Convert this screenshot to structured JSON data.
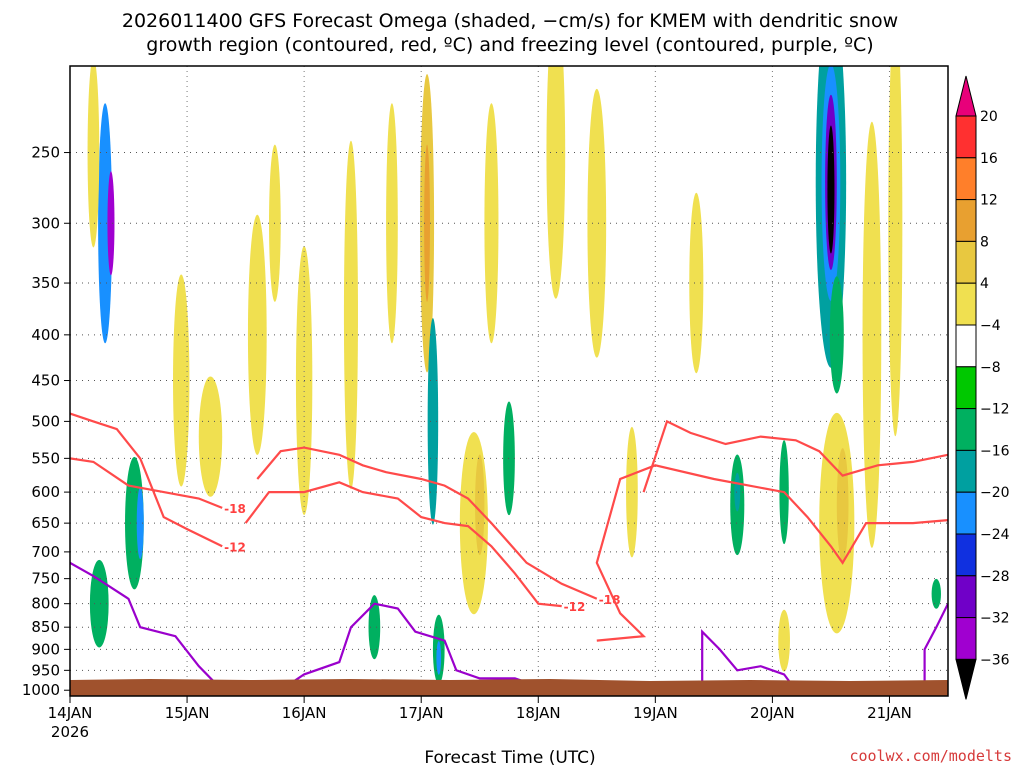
{
  "chart_data": {
    "type": "heatmap",
    "title_line1": "2026011400 GFS Forecast Omega (shaded, −cm/s) for KMEM with dendritic snow",
    "title_line2": "growth region (contoured, red, ºC) and freezing level (contoured, purple, ºC)",
    "xlabel": "Forecast Time (UTC)",
    "credit": "coolwx.com/modelts",
    "x_range_days": [
      14,
      21.5
    ],
    "x_ticks": [
      {
        "day": 14,
        "label": "14JAN",
        "sub": "2026"
      },
      {
        "day": 15,
        "label": "15JAN"
      },
      {
        "day": 16,
        "label": "16JAN"
      },
      {
        "day": 17,
        "label": "17JAN"
      },
      {
        "day": 18,
        "label": "18JAN"
      },
      {
        "day": 19,
        "label": "19JAN"
      },
      {
        "day": 20,
        "label": "20JAN"
      },
      {
        "day": 21,
        "label": "21JAN"
      }
    ],
    "y_ticks": [
      250,
      300,
      350,
      400,
      450,
      500,
      550,
      600,
      650,
      700,
      750,
      800,
      850,
      900,
      950,
      1000
    ],
    "y_range_hpa": [
      200,
      1015
    ],
    "colorbar": {
      "levels": [
        20,
        16,
        12,
        8,
        4,
        -4,
        -8,
        -12,
        -16,
        -20,
        -24,
        -28,
        -32,
        -36
      ],
      "colors": [
        "#e8007a",
        "#ff3030",
        "#ff7f2a",
        "#e8a030",
        "#e8c840",
        "#f0e050",
        "#ffffff",
        "#00c800",
        "#00b060",
        "#00a0a0",
        "#1890ff",
        "#1030e0",
        "#7000c8",
        "#a000d0",
        "#a0a0a0",
        "#000000"
      ]
    },
    "shading": [
      {
        "x": 14.3,
        "y": 300,
        "rx": 0.06,
        "ry": 90,
        "v": -16
      },
      {
        "x": 14.35,
        "y": 300,
        "rx": 0.03,
        "ry": 40,
        "v": -28
      },
      {
        "x": 14.55,
        "y": 650,
        "rx": 0.08,
        "ry": 110,
        "v": -10
      },
      {
        "x": 14.6,
        "y": 650,
        "rx": 0.03,
        "ry": 60,
        "v": -16
      },
      {
        "x": 14.25,
        "y": 800,
        "rx": 0.08,
        "ry": 90,
        "v": -8
      },
      {
        "x": 14.2,
        "y": 250,
        "rx": 0.05,
        "ry": 60,
        "v": 6
      },
      {
        "x": 14.95,
        "y": 450,
        "rx": 0.07,
        "ry": 120,
        "v": 6
      },
      {
        "x": 15.2,
        "y": 520,
        "rx": 0.1,
        "ry": 80,
        "v": 6
      },
      {
        "x": 15.6,
        "y": 400,
        "rx": 0.08,
        "ry": 120,
        "v": 5
      },
      {
        "x": 15.75,
        "y": 300,
        "rx": 0.05,
        "ry": 60,
        "v": 6
      },
      {
        "x": 16.0,
        "y": 450,
        "rx": 0.07,
        "ry": 150,
        "v": 5
      },
      {
        "x": 16.4,
        "y": 380,
        "rx": 0.06,
        "ry": 160,
        "v": 6
      },
      {
        "x": 16.6,
        "y": 850,
        "rx": 0.05,
        "ry": 70,
        "v": -8
      },
      {
        "x": 16.75,
        "y": 300,
        "rx": 0.05,
        "ry": 90,
        "v": 6
      },
      {
        "x": 17.05,
        "y": 300,
        "rx": 0.06,
        "ry": 110,
        "v": 9
      },
      {
        "x": 17.05,
        "y": 300,
        "rx": 0.025,
        "ry": 60,
        "v": 14
      },
      {
        "x": 17.1,
        "y": 500,
        "rx": 0.045,
        "ry": 130,
        "v": -12
      },
      {
        "x": 17.15,
        "y": 900,
        "rx": 0.05,
        "ry": 80,
        "v": -10
      },
      {
        "x": 17.15,
        "y": 920,
        "rx": 0.02,
        "ry": 40,
        "v": -16
      },
      {
        "x": 17.45,
        "y": 650,
        "rx": 0.12,
        "ry": 150,
        "v": 7
      },
      {
        "x": 17.5,
        "y": 620,
        "rx": 0.04,
        "ry": 80,
        "v": 11
      },
      {
        "x": 17.75,
        "y": 550,
        "rx": 0.05,
        "ry": 80,
        "v": -8
      },
      {
        "x": 17.6,
        "y": 300,
        "rx": 0.06,
        "ry": 90,
        "v": 6
      },
      {
        "x": 18.15,
        "y": 250,
        "rx": 0.08,
        "ry": 90,
        "v": 6
      },
      {
        "x": 18.5,
        "y": 300,
        "rx": 0.08,
        "ry": 100,
        "v": 5
      },
      {
        "x": 18.8,
        "y": 600,
        "rx": 0.05,
        "ry": 100,
        "v": 6
      },
      {
        "x": 19.35,
        "y": 350,
        "rx": 0.06,
        "ry": 80,
        "v": 5
      },
      {
        "x": 19.7,
        "y": 620,
        "rx": 0.06,
        "ry": 80,
        "v": -8
      },
      {
        "x": 19.7,
        "y": 600,
        "rx": 0.025,
        "ry": 30,
        "v": -14
      },
      {
        "x": 20.1,
        "y": 600,
        "rx": 0.04,
        "ry": 80,
        "v": -8
      },
      {
        "x": 20.1,
        "y": 880,
        "rx": 0.05,
        "ry": 70,
        "v": 6
      },
      {
        "x": 20.5,
        "y": 270,
        "rx": 0.13,
        "ry": 120,
        "v": -12
      },
      {
        "x": 20.5,
        "y": 270,
        "rx": 0.08,
        "ry": 80,
        "v": -18
      },
      {
        "x": 20.5,
        "y": 270,
        "rx": 0.05,
        "ry": 60,
        "v": -26
      },
      {
        "x": 20.5,
        "y": 275,
        "rx": 0.03,
        "ry": 45,
        "v": -38
      },
      {
        "x": 20.55,
        "y": 400,
        "rx": 0.06,
        "ry": 60,
        "v": -8
      },
      {
        "x": 20.55,
        "y": 650,
        "rx": 0.15,
        "ry": 180,
        "v": 7
      },
      {
        "x": 20.6,
        "y": 620,
        "rx": 0.05,
        "ry": 90,
        "v": 11
      },
      {
        "x": 20.85,
        "y": 400,
        "rx": 0.08,
        "ry": 200,
        "v": 7
      },
      {
        "x": 21.05,
        "y": 300,
        "rx": 0.06,
        "ry": 150,
        "v": 6
      },
      {
        "x": 21.4,
        "y": 780,
        "rx": 0.04,
        "ry": 30,
        "v": -8
      }
    ],
    "contours_dgz": [
      {
        "label": "-18",
        "points": [
          [
            14.0,
            550
          ],
          [
            14.2,
            555
          ],
          [
            14.5,
            590
          ],
          [
            14.8,
            600
          ],
          [
            15.1,
            610
          ],
          [
            15.3,
            625
          ]
        ]
      },
      {
        "label": "-12",
        "points": [
          [
            14.0,
            490
          ],
          [
            14.2,
            500
          ],
          [
            14.4,
            510
          ],
          [
            14.6,
            550
          ],
          [
            14.8,
            640
          ],
          [
            15.0,
            660
          ],
          [
            15.3,
            690
          ]
        ]
      },
      {
        "label": "-12",
        "points": [
          [
            15.5,
            650
          ],
          [
            15.7,
            600
          ],
          [
            16.0,
            600
          ],
          [
            16.3,
            585
          ],
          [
            16.5,
            600
          ],
          [
            16.8,
            610
          ],
          [
            17.0,
            640
          ],
          [
            17.2,
            650
          ],
          [
            17.4,
            655
          ],
          [
            17.6,
            690
          ],
          [
            17.8,
            740
          ],
          [
            18.0,
            800
          ],
          [
            18.2,
            805
          ]
        ]
      },
      {
        "label": "-18",
        "points": [
          [
            15.6,
            580
          ],
          [
            15.8,
            540
          ],
          [
            16.0,
            535
          ],
          [
            16.3,
            545
          ],
          [
            16.5,
            560
          ],
          [
            16.7,
            570
          ],
          [
            17.0,
            580
          ],
          [
            17.2,
            590
          ],
          [
            17.4,
            610
          ],
          [
            17.6,
            650
          ],
          [
            17.9,
            720
          ],
          [
            18.2,
            760
          ],
          [
            18.5,
            790
          ]
        ]
      },
      {
        "label": "-12",
        "points": [
          [
            18.5,
            880
          ],
          [
            18.9,
            870
          ],
          [
            18.7,
            820
          ],
          [
            18.5,
            720
          ],
          [
            18.7,
            580
          ],
          [
            19.0,
            560
          ],
          [
            19.5,
            580
          ],
          [
            19.8,
            590
          ],
          [
            20.1,
            600
          ],
          [
            20.3,
            640
          ],
          [
            20.5,
            690
          ],
          [
            20.6,
            720
          ],
          [
            20.8,
            650
          ],
          [
            21.2,
            650
          ],
          [
            21.5,
            645
          ]
        ]
      },
      {
        "label": "-18",
        "points": [
          [
            18.9,
            600
          ],
          [
            19.1,
            500
          ],
          [
            19.3,
            515
          ],
          [
            19.6,
            530
          ],
          [
            19.9,
            520
          ],
          [
            20.2,
            525
          ],
          [
            20.4,
            540
          ],
          [
            20.6,
            575
          ],
          [
            20.9,
            560
          ],
          [
            21.2,
            555
          ],
          [
            21.5,
            545
          ]
        ]
      }
    ],
    "contours_freezing": [
      {
        "label": "0",
        "points": [
          [
            14.0,
            720
          ],
          [
            14.2,
            745
          ],
          [
            14.5,
            790
          ],
          [
            14.6,
            850
          ],
          [
            14.9,
            870
          ],
          [
            15.1,
            940
          ],
          [
            15.3,
            1000
          ]
        ]
      },
      {
        "label": "0",
        "points": [
          [
            15.8,
            1000
          ],
          [
            16.0,
            960
          ],
          [
            16.3,
            930
          ],
          [
            16.4,
            850
          ],
          [
            16.6,
            800
          ],
          [
            16.8,
            810
          ],
          [
            16.95,
            860
          ],
          [
            17.2,
            880
          ],
          [
            17.3,
            950
          ],
          [
            17.5,
            970
          ],
          [
            17.8,
            970
          ],
          [
            18.0,
            990
          ]
        ]
      },
      {
        "label": "0",
        "points": [
          [
            19.4,
            1000
          ],
          [
            19.4,
            860
          ],
          [
            19.55,
            900
          ],
          [
            19.7,
            950
          ],
          [
            19.9,
            940
          ],
          [
            20.1,
            960
          ],
          [
            20.2,
            1000
          ]
        ]
      },
      {
        "label": "0",
        "points": [
          [
            21.3,
            1000
          ],
          [
            21.3,
            900
          ],
          [
            21.4,
            850
          ],
          [
            21.5,
            800
          ]
        ]
      }
    ]
  }
}
